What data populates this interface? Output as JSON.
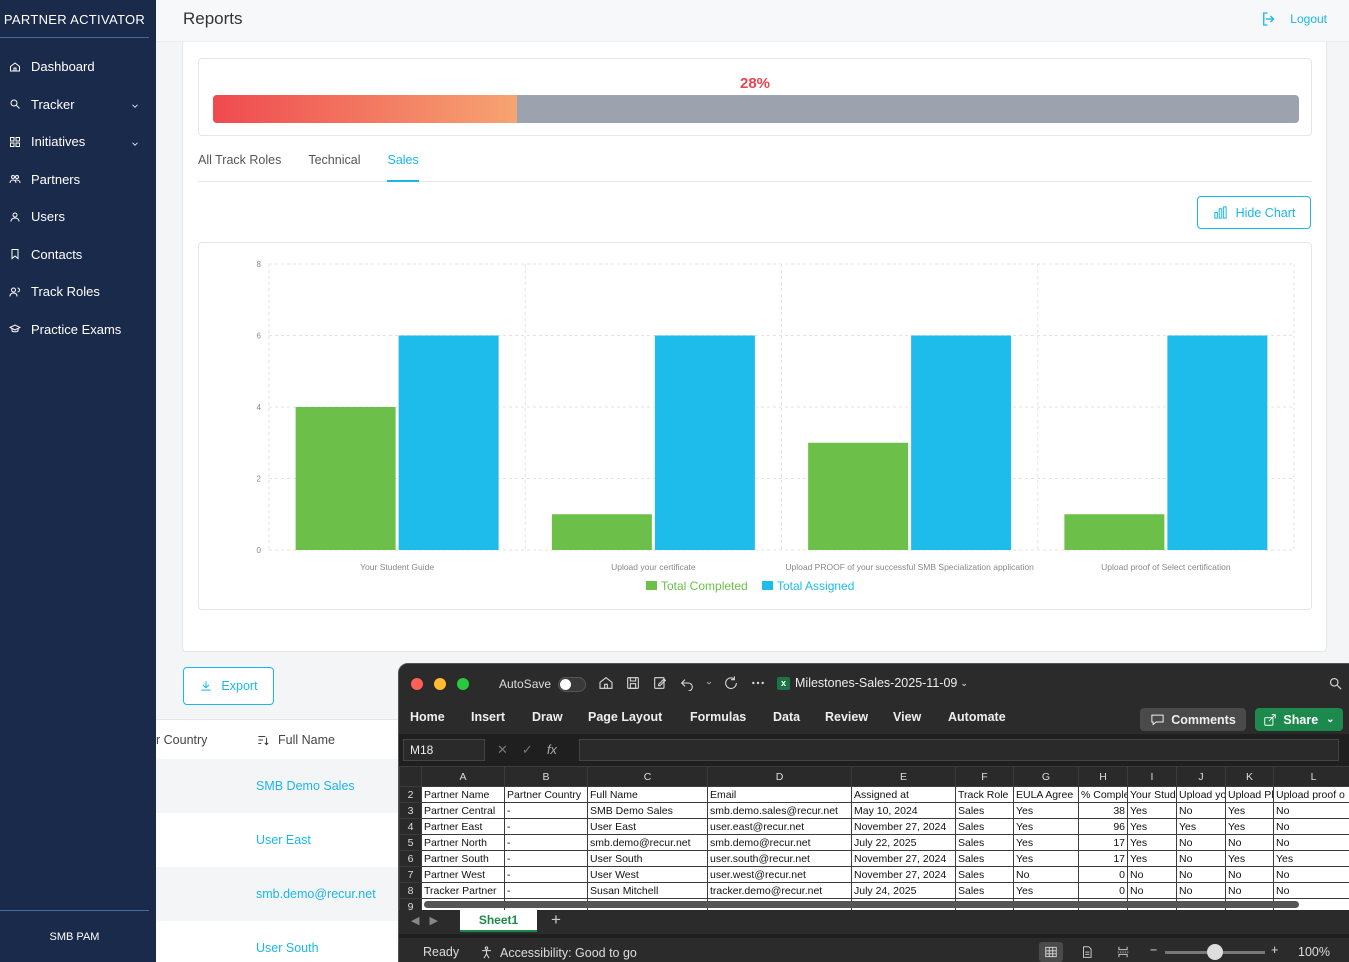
{
  "sidebar": {
    "brand": "PARTNER ACTIVATOR",
    "items": [
      {
        "label": "Dashboard",
        "icon": "home-icon"
      },
      {
        "label": "Tracker",
        "icon": "search-icon",
        "expandable": true
      },
      {
        "label": "Initiatives",
        "icon": "grid-icon",
        "expandable": true
      },
      {
        "label": "Partners",
        "icon": "partners-icon"
      },
      {
        "label": "Users",
        "icon": "user-icon"
      },
      {
        "label": "Contacts",
        "icon": "bookmark-icon"
      },
      {
        "label": "Track Roles",
        "icon": "users-icon"
      },
      {
        "label": "Practice Exams",
        "icon": "graduation-cap-icon"
      }
    ],
    "footer": "SMB PAM"
  },
  "header": {
    "title": "Reports",
    "logout": "Logout"
  },
  "progress": {
    "label": "28%",
    "value": 0.28
  },
  "tabs": [
    {
      "label": "All Track Roles",
      "active": false
    },
    {
      "label": "Technical",
      "active": false
    },
    {
      "label": "Sales",
      "active": true
    }
  ],
  "hide_chart_label": "Hide Chart",
  "export_label": "Export",
  "table": {
    "columns": [
      "r Country",
      "Full Name"
    ],
    "rows": [
      "SMB Demo Sales",
      "User East",
      "smb.demo@recur.net",
      "User South"
    ]
  },
  "colors": {
    "completed": "#6cc04a",
    "assigned": "#1ebcea",
    "accent": "#1ab7ea",
    "sidebar": "#1a2a4a"
  },
  "chart_data": {
    "type": "bar",
    "categories": [
      "Your Student Guide",
      "Upload your certificate",
      "Upload PROOF of your successful SMB Specialization application",
      "Upload proof of Select certification"
    ],
    "series": [
      {
        "name": "Total Completed",
        "values": [
          4,
          1,
          3,
          1
        ]
      },
      {
        "name": "Total Assigned",
        "values": [
          6,
          6,
          6,
          6
        ]
      }
    ],
    "yticks": [
      "0",
      "2",
      "4",
      "6",
      "8"
    ],
    "ylim": [
      0,
      8
    ],
    "legend": "bottom",
    "grid": true
  },
  "excel": {
    "autosave_label": "AutoSave",
    "doc_title": "Milestones-Sales-2025-11-09",
    "ribbon_tabs": [
      "Home",
      "Insert",
      "Draw",
      "Page Layout",
      "Formulas",
      "Data",
      "Review",
      "View",
      "Automate"
    ],
    "comments_label": "Comments",
    "share_label": "Share",
    "name_box": "M18",
    "columns": [
      "A",
      "B",
      "C",
      "D",
      "E",
      "F",
      "G",
      "H",
      "I",
      "J",
      "K",
      "L"
    ],
    "row_numbers": [
      "2",
      "3",
      "4",
      "5",
      "6",
      "7",
      "8",
      "9"
    ],
    "header_row": [
      "Partner Name",
      "Partner Country",
      "Full Name",
      "Email",
      "Assigned at",
      "Track Role",
      "EULA Agree",
      "% Comple",
      "Your Stud",
      "Upload yo",
      "Upload Pl",
      "Upload proof o"
    ],
    "rows": [
      [
        "Partner Central",
        "-",
        "SMB Demo Sales",
        "smb.demo.sales@recur.net",
        "May 10, 2024",
        "Sales",
        "Yes",
        "38",
        "Yes",
        "No",
        "Yes",
        "No"
      ],
      [
        "Partner East",
        "-",
        "User East",
        "user.east@recur.net",
        "November 27, 2024",
        "Sales",
        "Yes",
        "96",
        "Yes",
        "Yes",
        "Yes",
        "No"
      ],
      [
        "Partner North",
        "-",
        "smb.demo@recur.net",
        "smb.demo@recur.net",
        "July 22, 2025",
        "Sales",
        "Yes",
        "17",
        "Yes",
        "No",
        "No",
        "No"
      ],
      [
        "Partner South",
        "-",
        "User South",
        "user.south@recur.net",
        "November 27, 2024",
        "Sales",
        "Yes",
        "17",
        "Yes",
        "No",
        "Yes",
        "Yes"
      ],
      [
        "Partner West",
        "-",
        "User West",
        "user.west@recur.net",
        "November 27, 2024",
        "Sales",
        "No",
        "0",
        "No",
        "No",
        "No",
        "No"
      ],
      [
        "Tracker Partner",
        "-",
        "Susan Mitchell",
        "tracker.demo@recur.net",
        "July 24, 2025",
        "Sales",
        "Yes",
        "0",
        "No",
        "No",
        "No",
        "No"
      ],
      [
        "",
        "",
        "",
        "",
        "",
        "",
        "",
        "",
        "",
        "",
        "",
        ""
      ]
    ],
    "sheet_tab": "Sheet1",
    "add_sheet": "+",
    "status_ready": "Ready",
    "status_accessibility": "Accessibility: Good to go",
    "zoom_minus": "−",
    "zoom_plus": "+",
    "zoom": "100%",
    "zoom_value": 0.5
  }
}
